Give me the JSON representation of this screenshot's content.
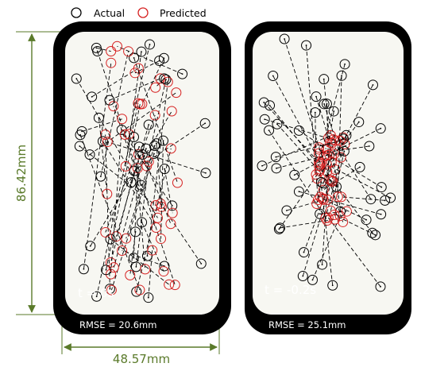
{
  "legend": {
    "actual_label": "Actual",
    "predicted_label": "Predicted",
    "actual_color": "#000000",
    "predicted_color": "#d62020"
  },
  "dimensions": {
    "height_label": "86.42mm",
    "width_label": "48.57mm",
    "color": "#5a7a2a"
  },
  "colors": {
    "frame": "#000000",
    "screen": "#f7f7f2",
    "label_text": "#ffffff"
  },
  "panels": [
    {
      "time_label": "t = 0s",
      "rmse_label": "RMSE = 20.6mm"
    },
    {
      "time_label": "t = -0.2s",
      "rmse_label": "RMSE = 25.1mm"
    }
  ]
}
